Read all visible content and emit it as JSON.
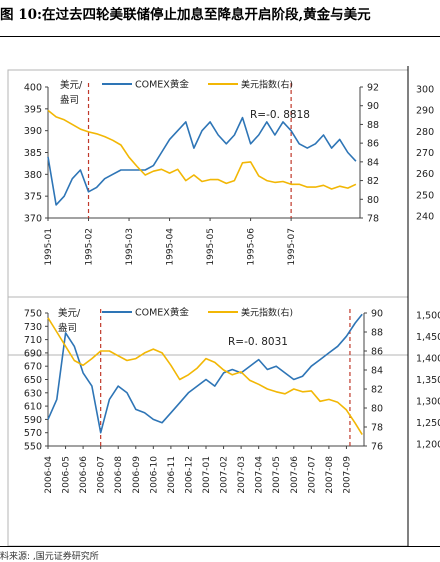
{
  "figure": {
    "title": "图 10:在过去四轮美联储停止加息至降息开启阶段,黄金与美元",
    "footer": "料来源:          ,国元证券研究所"
  },
  "colors": {
    "gold": "#2E75B6",
    "usd": "#F2B705",
    "divider": "#C0392B",
    "axis": "#444444"
  },
  "chart_data": [
    {
      "type": "line",
      "panel": "1995",
      "annotation": "R=-0. 8818",
      "legend": [
        "COMEX黄金",
        "美元指数(右)"
      ],
      "legend_placement": "top",
      "left_axis_title": "美元/盎司",
      "x_ticks": [
        "1995-01",
        "1995-02",
        "1995-03",
        "1995-04",
        "1995-05",
        "1995-06",
        "1995-07"
      ],
      "x_range": [
        0,
        7.7
      ],
      "ylim_left": [
        370,
        400
      ],
      "yticks_left": [
        370,
        375,
        380,
        385,
        390,
        395,
        400
      ],
      "ylim_right": [
        78,
        92
      ],
      "yticks_right": [
        78,
        80,
        82,
        84,
        86,
        88,
        90,
        92
      ],
      "outer_ticks": [
        "300",
        "290",
        "280",
        "270",
        "260",
        "250",
        "240"
      ],
      "event_lines_x": [
        1.0,
        6.0
      ],
      "series": [
        {
          "name": "COMEX黄金",
          "axis": "left",
          "x": [
            0,
            0.2,
            0.4,
            0.6,
            0.8,
            1.0,
            1.2,
            1.4,
            1.6,
            1.8,
            2.0,
            2.2,
            2.4,
            2.6,
            2.8,
            3.0,
            3.2,
            3.4,
            3.6,
            3.8,
            4.0,
            4.2,
            4.4,
            4.6,
            4.8,
            5.0,
            5.2,
            5.4,
            5.6,
            5.8,
            6.0,
            6.2,
            6.4,
            6.6,
            6.8,
            7.0,
            7.2,
            7.4,
            7.6
          ],
          "values": [
            384,
            373,
            375,
            379,
            381,
            376,
            377,
            379,
            380,
            381,
            381,
            381,
            381,
            382,
            385,
            388,
            390,
            392,
            386,
            390,
            392,
            389,
            387,
            389,
            393,
            387,
            389,
            392,
            389,
            392,
            390,
            387,
            386,
            387,
            389,
            386,
            388,
            385,
            383
          ]
        },
        {
          "name": "美元指数(右)",
          "axis": "right",
          "x": [
            0,
            0.2,
            0.4,
            0.6,
            0.8,
            1.0,
            1.2,
            1.4,
            1.6,
            1.8,
            2.0,
            2.2,
            2.4,
            2.6,
            2.8,
            3.0,
            3.2,
            3.4,
            3.6,
            3.8,
            4.0,
            4.2,
            4.4,
            4.6,
            4.8,
            5.0,
            5.2,
            5.4,
            5.6,
            5.8,
            6.0,
            6.2,
            6.4,
            6.6,
            6.8,
            7.0,
            7.2,
            7.4,
            7.6
          ],
          "values": [
            89.5,
            88.8,
            88.5,
            88.0,
            87.5,
            87.2,
            87.0,
            86.7,
            86.3,
            85.8,
            84.5,
            83.5,
            82.6,
            83.0,
            83.2,
            82.8,
            83.2,
            82.0,
            82.6,
            81.9,
            82.1,
            82.1,
            81.7,
            82.0,
            83.9,
            84.0,
            82.5,
            82.0,
            81.8,
            81.9,
            81.6,
            81.6,
            81.3,
            81.3,
            81.5,
            81.1,
            81.4,
            81.2,
            81.6
          ]
        }
      ]
    },
    {
      "type": "line",
      "panel": "2006",
      "annotation": "R=-0. 8031",
      "legend": [
        "COMEX黄金",
        "美元指数(右)"
      ],
      "legend_placement": "top",
      "left_axis_title": "美元/盎司",
      "x_ticks": [
        "2006-04",
        "2006-05",
        "2006-06",
        "2006-07",
        "2006-08",
        "2006-09",
        "2006-10",
        "2006-11",
        "2006-12",
        "2007-01",
        "2007-02",
        "2007-03",
        "2007-04",
        "2007-05",
        "2007-06",
        "2007-07",
        "2007-08",
        "2007-09"
      ],
      "x_range": [
        0,
        18
      ],
      "ylim_left": [
        550,
        750
      ],
      "yticks_left": [
        550,
        570,
        590,
        610,
        630,
        650,
        670,
        690,
        710,
        730,
        750
      ],
      "ylim_right": [
        76,
        90
      ],
      "yticks_right": [
        76,
        78,
        80,
        82,
        84,
        86,
        88,
        90
      ],
      "outer_ticks": [
        "1,500",
        "1,450",
        "1,400",
        "1,350",
        "1,300",
        "1,250",
        "1,200"
      ],
      "event_lines_x": [
        3.0,
        17.2
      ],
      "series": [
        {
          "name": "COMEX黄金",
          "axis": "left",
          "x": [
            0,
            0.5,
            1,
            1.5,
            2,
            2.5,
            3,
            3.5,
            4,
            4.5,
            5,
            5.5,
            6,
            6.5,
            7,
            7.5,
            8,
            8.5,
            9,
            9.5,
            10,
            10.5,
            11,
            11.5,
            12,
            12.5,
            13,
            13.5,
            14,
            14.5,
            15,
            15.5,
            16,
            16.5,
            17,
            17.5,
            17.9
          ],
          "values": [
            590,
            620,
            720,
            700,
            660,
            640,
            570,
            620,
            640,
            630,
            605,
            600,
            590,
            585,
            600,
            615,
            630,
            640,
            650,
            640,
            660,
            665,
            660,
            670,
            680,
            665,
            670,
            660,
            650,
            655,
            670,
            680,
            690,
            700,
            715,
            735,
            748
          ]
        },
        {
          "name": "美元指数(右)",
          "axis": "right",
          "x": [
            0,
            0.5,
            1,
            1.5,
            2,
            2.5,
            3,
            3.5,
            4,
            4.5,
            5,
            5.5,
            6,
            6.5,
            7,
            7.5,
            8,
            8.5,
            9,
            9.5,
            10,
            10.5,
            11,
            11.5,
            12,
            12.5,
            13,
            13.5,
            14,
            14.5,
            15,
            15.5,
            16,
            16.5,
            17,
            17.5,
            17.9
          ],
          "values": [
            89.5,
            88.0,
            86.5,
            85.0,
            84.5,
            85.2,
            86.0,
            86.0,
            85.5,
            85.0,
            85.2,
            85.8,
            86.2,
            85.8,
            84.5,
            83.0,
            83.5,
            84.2,
            85.2,
            84.8,
            84.0,
            83.5,
            83.8,
            82.9,
            82.5,
            82.0,
            81.7,
            81.5,
            82.0,
            81.7,
            81.8,
            80.7,
            80.9,
            80.6,
            79.8,
            78.4,
            77.2
          ]
        }
      ]
    }
  ]
}
